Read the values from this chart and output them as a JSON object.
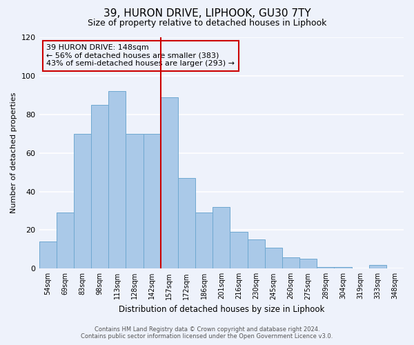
{
  "title": "39, HURON DRIVE, LIPHOOK, GU30 7TY",
  "subtitle": "Size of property relative to detached houses in Liphook",
  "xlabel": "Distribution of detached houses by size in Liphook",
  "ylabel": "Number of detached properties",
  "bins": [
    "54sqm",
    "69sqm",
    "83sqm",
    "98sqm",
    "113sqm",
    "128sqm",
    "142sqm",
    "157sqm",
    "172sqm",
    "186sqm",
    "201sqm",
    "216sqm",
    "230sqm",
    "245sqm",
    "260sqm",
    "275sqm",
    "289sqm",
    "304sqm",
    "319sqm",
    "333sqm",
    "348sqm"
  ],
  "counts": [
    14,
    29,
    70,
    85,
    92,
    70,
    70,
    89,
    47,
    29,
    32,
    19,
    15,
    11,
    6,
    5,
    1,
    1,
    0,
    2,
    0
  ],
  "bar_color": "#aac9e8",
  "bar_edge_color": "#6fa8d0",
  "vline_x": 7.0,
  "vline_color": "#cc0000",
  "ylim": [
    0,
    120
  ],
  "yticks": [
    0,
    20,
    40,
    60,
    80,
    100,
    120
  ],
  "annotation_title": "39 HURON DRIVE: 148sqm",
  "annotation_line1": "← 56% of detached houses are smaller (383)",
  "annotation_line2": "43% of semi-detached houses are larger (293) →",
  "annotation_box_color": "#cc0000",
  "footer1": "Contains HM Land Registry data © Crown copyright and database right 2024.",
  "footer2": "Contains public sector information licensed under the Open Government Licence v3.0.",
  "background_color": "#eef2fb",
  "grid_color": "#ffffff"
}
